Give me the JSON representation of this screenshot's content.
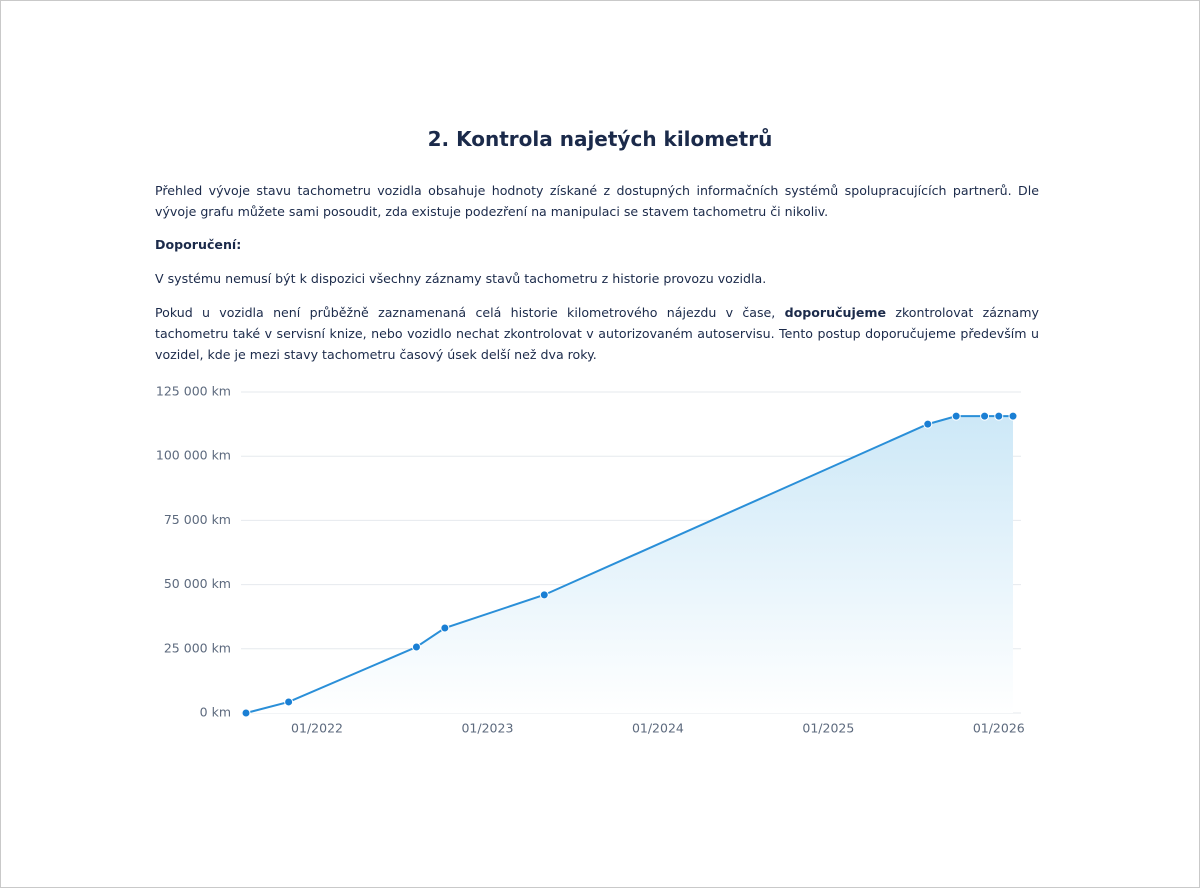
{
  "header": {
    "title": "2. Kontrola najetých kilometrů"
  },
  "text": {
    "intro": "Přehled vývoje stavu tachometru vozidla obsahuje hodnoty získané z dostupných informačních systémů spolupracujících partnerů. Dle vývoje grafu můžete sami posoudit, zda existuje podezření na manipulaci se stavem tachometru či nikoliv.",
    "heading": "Doporučení:",
    "note": "V systému nemusí být k dispozici všechny záznamy stavů tachometru z historie provozu vozidla.",
    "advice": [
      "Pokud u vozidla není průběžně zaznamenaná celá historie kilometrového nájezdu v čase, ",
      "doporučujeme",
      " zkontrolovat záznamy tachometru také v servisní knize, nebo vozidlo nechat zkontrolovat v autorizovaném autoservisu. Tento postup doporučujeme především u vozidel, kde je mezi stavy tachometru časový úsek delší než dva roky."
    ]
  },
  "chart_data": {
    "type": "area",
    "x": [
      "08/2021",
      "11/2021",
      "08/2022",
      "10/2022",
      "05/2023",
      "08/2025",
      "10/2025",
      "12/2025",
      "01/2026",
      "02/2026"
    ],
    "series": [
      {
        "color": "#2a8fd8",
        "values": [
          0,
          4300,
          25700,
          33100,
          46000,
          112500,
          115600,
          115600,
          115600,
          115600
        ]
      }
    ],
    "xlim": [
      "08/2021",
      "02/2026"
    ],
    "xticks": [
      "01/2022",
      "01/2023",
      "01/2024",
      "01/2025",
      "01/2026"
    ],
    "ylim": [
      0,
      125000
    ],
    "yticks": [
      {
        "value": 0,
        "label": "0 km"
      },
      {
        "value": 25000,
        "label": "25 000 km"
      },
      {
        "value": 50000,
        "label": "50 000 km"
      },
      {
        "value": 75000,
        "label": "75 000 km"
      },
      {
        "value": 100000,
        "label": "100 000 km"
      },
      {
        "value": 125000,
        "label": "125 000 km"
      }
    ],
    "grid": true
  }
}
